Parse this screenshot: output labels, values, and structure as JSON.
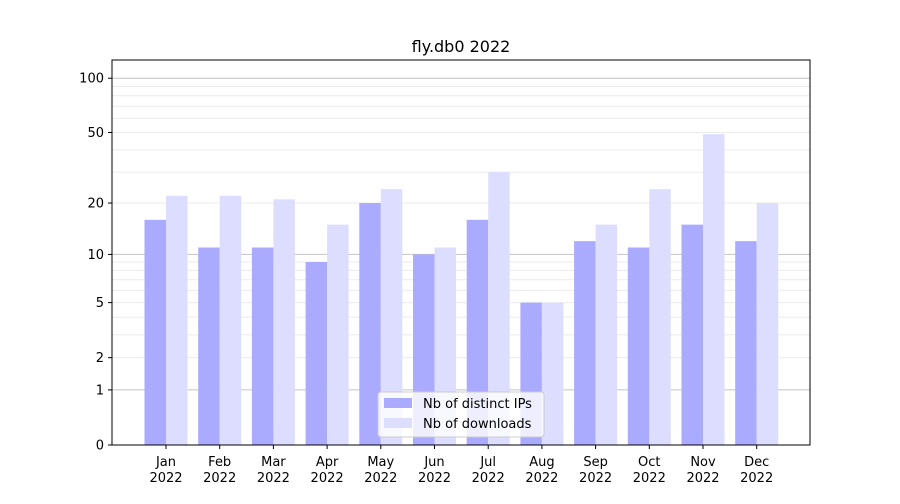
{
  "chart_data": {
    "type": "bar",
    "title": "fly.db0 2022",
    "xlabel": "",
    "ylabel": "",
    "y_scale": "log10(1+y)",
    "ylim": [
      0,
      126
    ],
    "yticks": [
      0,
      1,
      2,
      5,
      10,
      20,
      50,
      100
    ],
    "grid": true,
    "legend_position": "lower center",
    "categories": [
      "Jan\n2022",
      "Feb\n2022",
      "Mar\n2022",
      "Apr\n2022",
      "May\n2022",
      "Jun\n2022",
      "Jul\n2022",
      "Aug\n2022",
      "Sep\n2022",
      "Oct\n2022",
      "Nov\n2022",
      "Dec\n2022"
    ],
    "series": [
      {
        "name": "Nb of distinct IPs",
        "color": "#aaaaff",
        "values": [
          16,
          11,
          11,
          9,
          20,
          10,
          16,
          5,
          12,
          11,
          15,
          12
        ]
      },
      {
        "name": "Nb of downloads",
        "color": "#ddddff",
        "values": [
          22,
          22,
          21,
          15,
          24,
          11,
          30,
          5,
          15,
          24,
          49,
          20
        ]
      }
    ]
  }
}
